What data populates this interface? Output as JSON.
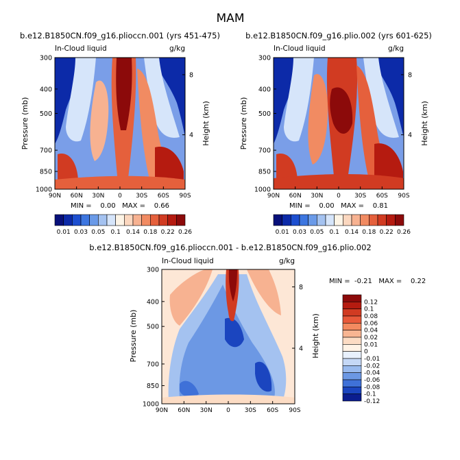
{
  "figure_title": "MAM",
  "chart_data": [
    {
      "type": "heatmap",
      "title": "b.e12.B1850CN.f09_g16.plioccn.001 (yrs 451-475)",
      "variable": "In-Cloud liquid",
      "units": "g/kg",
      "ylabel": "Pressure (mb)",
      "ylabel_right": "Height (km)",
      "x_ticks": [
        "90N",
        "60N",
        "30N",
        "0",
        "30S",
        "60S",
        "90S"
      ],
      "y_ticks": [
        300,
        400,
        500,
        700,
        850,
        1000
      ],
      "height_ticks": [
        8,
        4
      ],
      "ylim": [
        1000,
        300
      ],
      "stats_text": "MIN =    0.00   MAX =    0.66",
      "min": 0.0,
      "max": 0.66,
      "colorbar_labels": [
        "0.01",
        "0.03",
        "0.05",
        "0.1",
        "0.14",
        "0.18",
        "0.22",
        "0.26"
      ]
    },
    {
      "type": "heatmap",
      "title": "b.e12.B1850CN.f09_g16.plio.002 (yrs 601-625)",
      "variable": "In-Cloud liquid",
      "units": "g/kg",
      "ylabel": "Pressure (mb)",
      "ylabel_right": "Height (km)",
      "x_ticks": [
        "90N",
        "60N",
        "30N",
        "0",
        "30S",
        "60S",
        "90S"
      ],
      "y_ticks": [
        300,
        400,
        500,
        700,
        850,
        1000
      ],
      "height_ticks": [
        8,
        4
      ],
      "ylim": [
        1000,
        300
      ],
      "stats_text": "MIN =    0.00   MAX =    0.81",
      "min": 0.0,
      "max": 0.81,
      "colorbar_labels": [
        "0.01",
        "0.03",
        "0.05",
        "0.1",
        "0.14",
        "0.18",
        "0.22",
        "0.26"
      ]
    },
    {
      "type": "heatmap",
      "title": "b.e12.B1850CN.f09_g16.plioccn.001 - b.e12.B1850CN.f09_g16.plio.002",
      "variable": "In-Cloud liquid",
      "units": "g/kg",
      "ylabel": "Pressure (mb)",
      "ylabel_right": "Height (km)",
      "x_ticks": [
        "90N",
        "60N",
        "30N",
        "0",
        "30S",
        "60S",
        "90S"
      ],
      "y_ticks": [
        300,
        400,
        500,
        700,
        850,
        1000
      ],
      "height_ticks": [
        8,
        4
      ],
      "ylim": [
        1000,
        300
      ],
      "stats_text": "MIN =  -0.21   MAX =    0.22",
      "min": -0.21,
      "max": 0.22,
      "colorbar_labels": [
        "0.12",
        "0.1",
        "0.08",
        "0.06",
        "0.04",
        "0.02",
        "0.01",
        "0",
        "-0.01",
        "-0.02",
        "-0.04",
        "-0.06",
        "-0.08",
        "-0.1",
        "-0.12"
      ]
    }
  ],
  "colors": {
    "abs_scale": [
      "#08107a",
      "#0c2aa8",
      "#1d4fd0",
      "#3d76e0",
      "#6a9ae8",
      "#a4c2f0",
      "#d6e5fa",
      "#fdf4e6",
      "#fbd7bf",
      "#f7b291",
      "#f18b62",
      "#e5603c",
      "#d13b22",
      "#b51b10",
      "#8c0a0a"
    ],
    "diff_scale": [
      "#8c0a0a",
      "#b51b10",
      "#d13b22",
      "#e8593a",
      "#f38a60",
      "#f8b592",
      "#fcdcc4",
      "#fff3e6",
      "#e8f0fc",
      "#c5d8f6",
      "#99baee",
      "#6c98e4",
      "#3f71d8",
      "#1b45bf",
      "#0b1d8f"
    ]
  }
}
